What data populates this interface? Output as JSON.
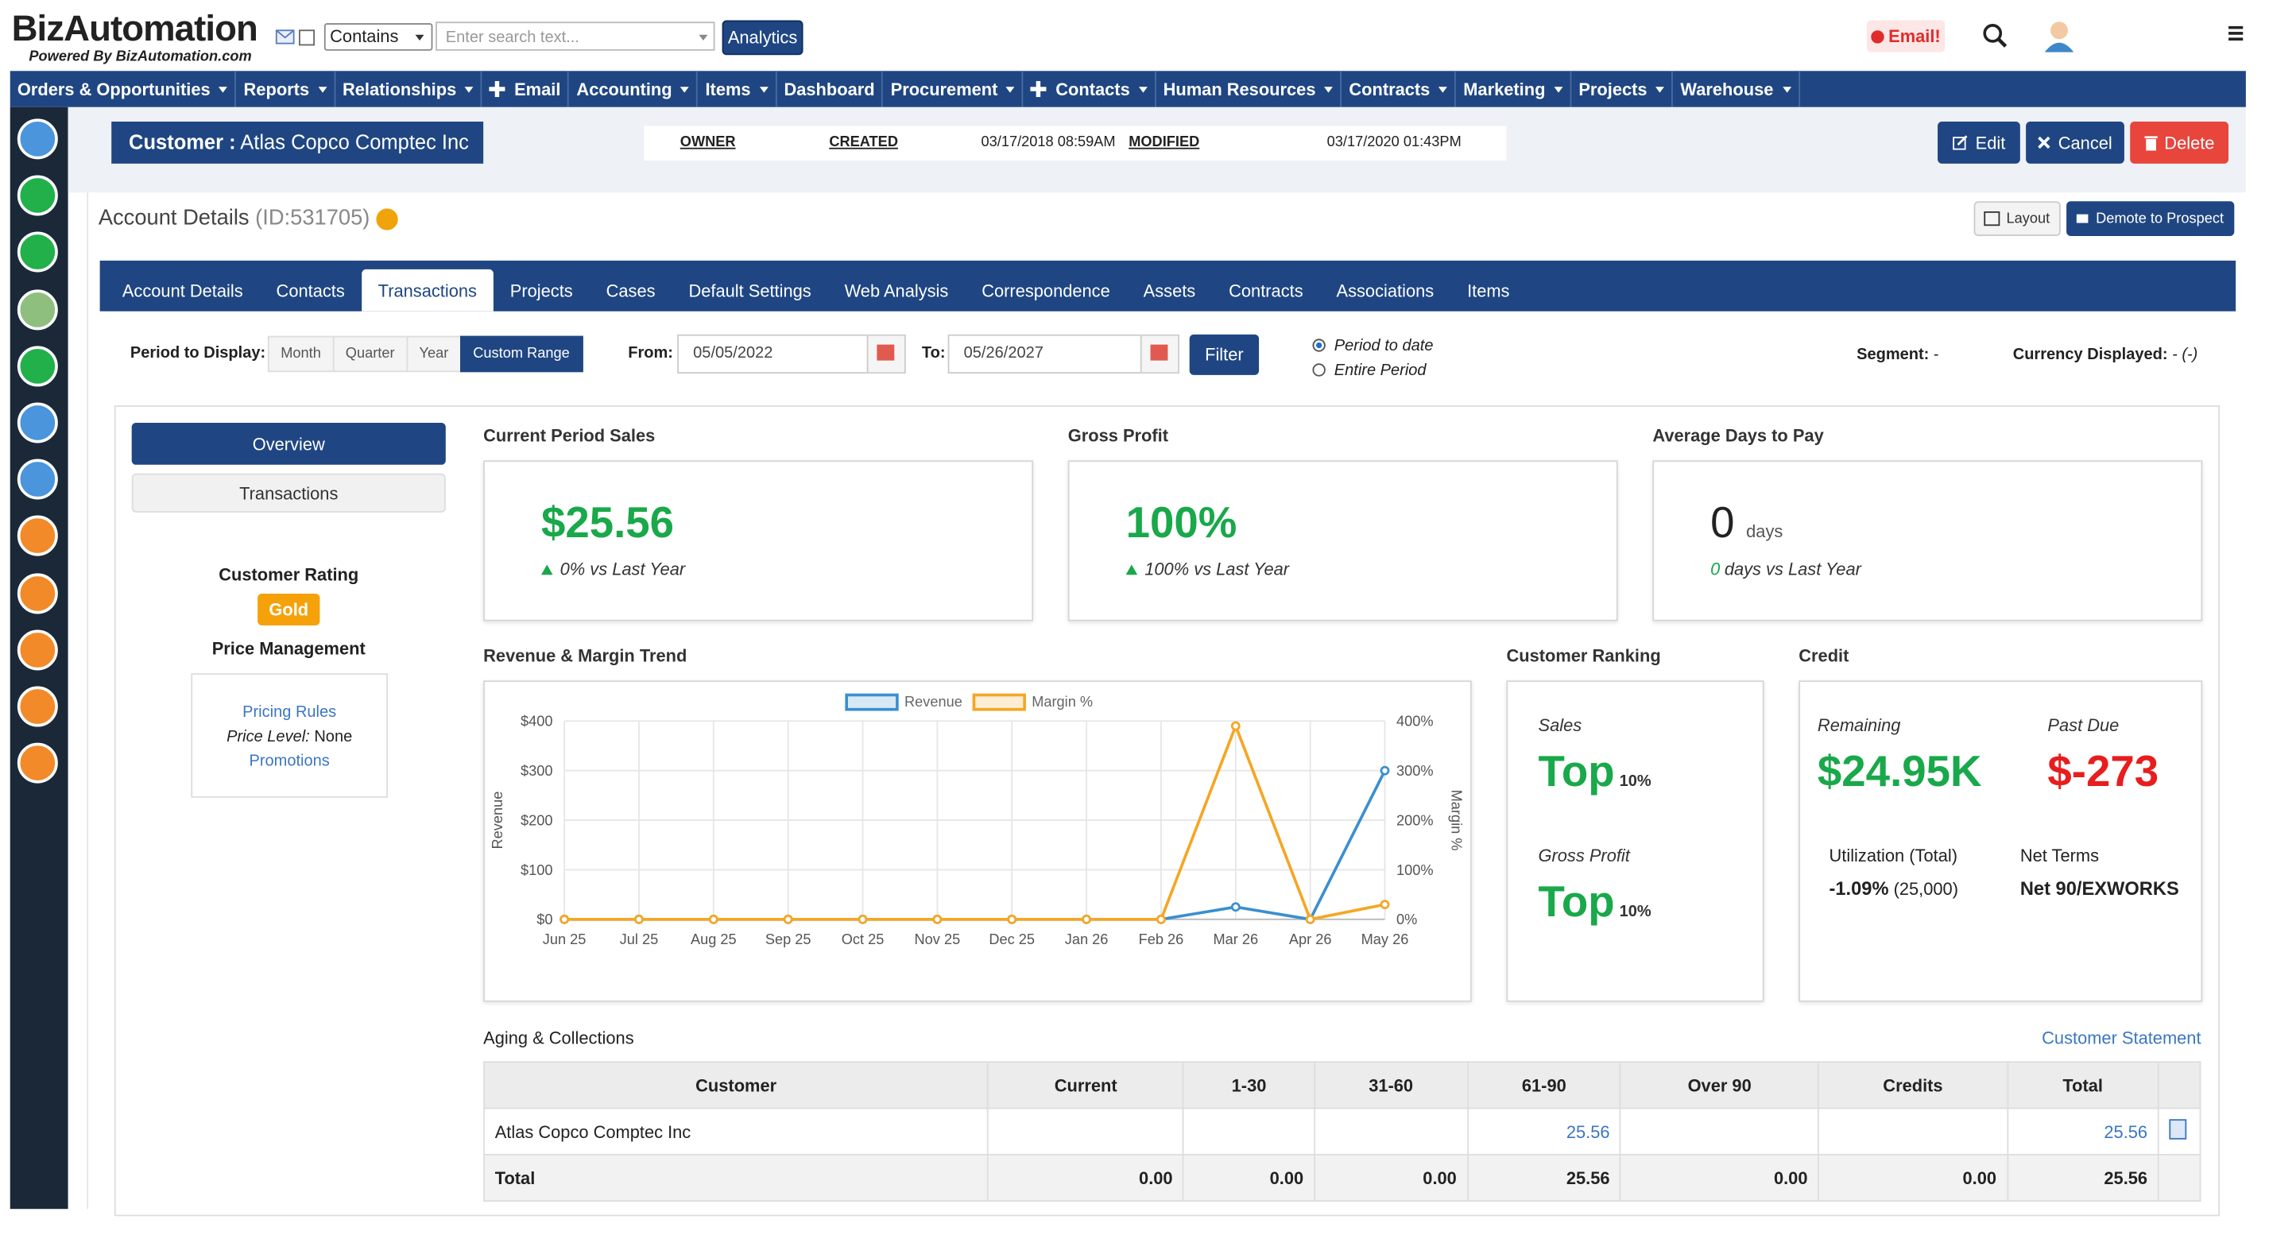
{
  "header": {
    "logo": "BizAutomation",
    "tagline": "Powered By BizAutomation.com",
    "search_mode": "Contains",
    "search_placeholder": "Enter search text...",
    "analytics": "Analytics",
    "email_badge": "Email!"
  },
  "nav": [
    {
      "label": "Orders & Opportunities",
      "menu": true
    },
    {
      "label": "Reports",
      "menu": true
    },
    {
      "label": "Relationships",
      "menu": true
    },
    {
      "label": "Email",
      "plus": true
    },
    {
      "label": "Accounting",
      "menu": true
    },
    {
      "label": "Items",
      "menu": true
    },
    {
      "label": "Dashboard"
    },
    {
      "label": "Procurement",
      "menu": true
    },
    {
      "label": "Contacts",
      "plus": true,
      "menu": true
    },
    {
      "label": "Human Resources",
      "menu": true
    },
    {
      "label": "Contracts",
      "menu": true
    },
    {
      "label": "Marketing",
      "menu": true
    },
    {
      "label": "Projects",
      "menu": true
    },
    {
      "label": "Warehouse",
      "menu": true
    }
  ],
  "record": {
    "kind": "Customer :",
    "name": "Atlas Copco Comptec Inc",
    "owner": "OWNER",
    "created": "CREATED",
    "created_at": "03/17/2018 08:59AM",
    "modified": "MODIFIED",
    "modified_at": "03/17/2020 01:43PM",
    "edit": "Edit",
    "cancel": "Cancel",
    "delete": "Delete"
  },
  "page": {
    "title": "Account Details",
    "id": "(ID:531705)",
    "layout": "Layout",
    "demote": "Demote to Prospect"
  },
  "tabs": {
    "items": [
      "Account Details",
      "Contacts",
      "Transactions",
      "Projects",
      "Cases",
      "Default Settings",
      "Web Analysis",
      "Correspondence",
      "Assets",
      "Contracts",
      "Associations",
      "Items"
    ],
    "active": 2
  },
  "filter": {
    "period_label": "Period to Display:",
    "periods": [
      "Month",
      "Quarter",
      "Year",
      "Custom Range"
    ],
    "active": 3,
    "from_label": "From:",
    "from": "05/05/2022",
    "to_label": "To:",
    "to": "05/26/2027",
    "button": "Filter",
    "options": [
      "Period to date",
      "Entire Period"
    ],
    "selected": 0,
    "segment_label": "Segment:",
    "segment": "-",
    "currency_label": "Currency Displayed:",
    "currency": "- (-)"
  },
  "side": {
    "overview": "Overview",
    "transactions": "Transactions",
    "rating_label": "Customer Rating",
    "rating": "Gold",
    "price_label": "Price Management",
    "pricing_rules": "Pricing Rules",
    "price_level_label": "Price Level:",
    "price_level": "None",
    "promotions": "Promotions"
  },
  "kpis": [
    {
      "title": "Current Period Sales",
      "value": "$25.56",
      "delta": "0% vs Last Year"
    },
    {
      "title": "Gross Profit",
      "value": "100%",
      "delta": "100% vs Last Year"
    },
    {
      "title": "Average Days to Pay",
      "value": "0",
      "unit": "days",
      "delta_value": "0",
      "delta": "days vs Last Year"
    }
  ],
  "chart_data": {
    "type": "line",
    "title": "Revenue & Margin Trend",
    "categories": [
      "Jun 25",
      "Jul 25",
      "Aug 25",
      "Sep 25",
      "Oct 25",
      "Nov 25",
      "Dec 25",
      "Jan 26",
      "Feb 26",
      "Mar 26",
      "Apr 26",
      "May 26"
    ],
    "series": [
      {
        "name": "Revenue",
        "color": "#3a8fd0",
        "values": [
          0,
          0,
          0,
          0,
          0,
          0,
          0,
          0,
          0,
          25,
          0,
          300
        ]
      },
      {
        "name": "Margin %",
        "color": "#f5a623",
        "axis": "y2",
        "values": [
          0,
          0,
          0,
          0,
          0,
          0,
          0,
          0,
          0,
          390,
          0,
          30
        ]
      }
    ],
    "y_label": "Revenue",
    "y2_label": "Margin %",
    "ylim": [
      0,
      400
    ],
    "yticks": [
      {
        "value": 0,
        "label": "$0"
      },
      {
        "value": 100,
        "label": "$100"
      },
      {
        "value": 200,
        "label": "$200"
      },
      {
        "value": 300,
        "label": "$300"
      },
      {
        "value": 400,
        "label": "$400"
      }
    ],
    "y2lim": [
      0,
      400
    ],
    "y2ticks": [
      {
        "value": 0,
        "label": "0%"
      },
      {
        "value": 100,
        "label": "100%"
      },
      {
        "value": 200,
        "label": "200%"
      },
      {
        "value": 300,
        "label": "300%"
      },
      {
        "value": 400,
        "label": "400%"
      }
    ],
    "grid": true
  },
  "ranking": {
    "title": "Customer Ranking",
    "sales_label": "Sales",
    "sales": "Top",
    "sales_pct": "10%",
    "gp_label": "Gross Profit",
    "gp": "Top",
    "gp_pct": "10%"
  },
  "credit": {
    "title": "Credit",
    "remaining_label": "Remaining",
    "remaining": "$24.95K",
    "past_due_label": "Past Due",
    "past_due": "$-273",
    "utilization_label": "Utilization (Total)",
    "utilization": "-1.09%",
    "utilization_total": "(25,000)",
    "terms_label": "Net Terms",
    "terms": "Net 90/EXWORKS"
  },
  "aging": {
    "title": "Aging & Collections",
    "statement": "Customer Statement",
    "headers": [
      "Customer",
      "Current",
      "1-30",
      "31-60",
      "61-90",
      "Over 90",
      "Credits",
      "Total"
    ],
    "rows": [
      [
        "Atlas Copco Comptec Inc",
        null,
        null,
        null,
        "25.56",
        null,
        null,
        "25.56"
      ],
      [
        "Total",
        "0.00",
        "0.00",
        "0.00",
        "25.56",
        "0.00",
        "0.00",
        "25.56"
      ]
    ]
  }
}
